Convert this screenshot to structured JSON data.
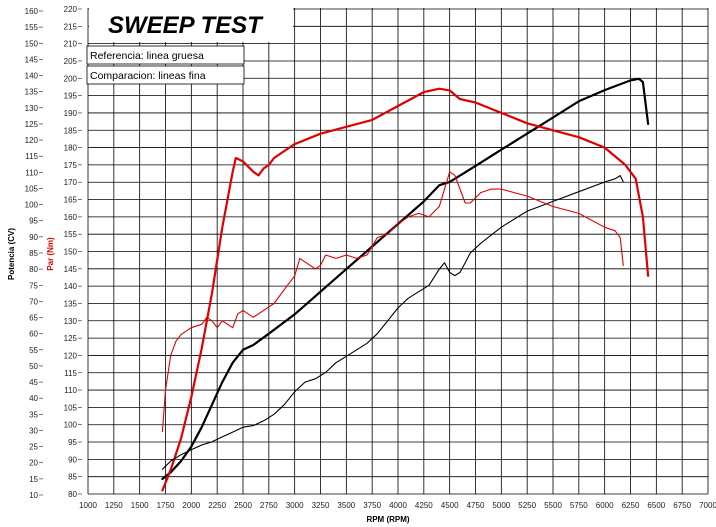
{
  "chart_data": {
    "type": "line",
    "title": "SWEEP TEST",
    "legend": [
      "Referencia: linea gruesa",
      "Comparacion: lineas fina"
    ],
    "xlabel": "RPM (RPM)",
    "ylabel_left": "Potencia (CV)",
    "ylabel_right": "Par (Nm)",
    "x_range": [
      1000,
      7000
    ],
    "x_ticks": [
      "1000",
      "1250",
      "1500",
      "1750",
      "2000",
      "2250",
      "2500",
      "2750",
      "3000",
      "3250",
      "3500",
      "3750",
      "4000",
      "4250",
      "4500",
      "4750",
      "5000",
      "5250",
      "5500",
      "5750",
      "6000",
      "6250",
      "6500",
      "6750",
      "7000"
    ],
    "left_range": [
      10,
      160
    ],
    "left_ticks": [
      "10",
      "15",
      "20",
      "25",
      "30",
      "35",
      "40",
      "45",
      "50",
      "55",
      "60",
      "65",
      "70",
      "75",
      "80",
      "85",
      "90",
      "95",
      "100",
      "105",
      "110",
      "115",
      "120",
      "125",
      "130",
      "135",
      "140",
      "145",
      "150",
      "155",
      "160"
    ],
    "right_range": [
      80,
      220
    ],
    "right_ticks": [
      "80",
      "85",
      "90",
      "95",
      "100",
      "105",
      "110",
      "115",
      "120",
      "125",
      "130",
      "135",
      "140",
      "145",
      "150",
      "155",
      "160",
      "165",
      "170",
      "175",
      "180",
      "185",
      "190",
      "195",
      "200",
      "205",
      "210",
      "215",
      "220"
    ],
    "grid": true,
    "series": [
      {
        "name": "Referencia: linea gruesa",
        "quantity": "Potencia",
        "axis": "left",
        "color": "#000000",
        "weight": "thick",
        "x": [
          1720,
          1800,
          1900,
          2000,
          2100,
          2200,
          2300,
          2400,
          2500,
          2600,
          2750,
          3000,
          3250,
          3500,
          3750,
          4000,
          4250,
          4400,
          4500,
          4600,
          4750,
          5000,
          5250,
          5500,
          5750,
          6000,
          6250,
          6330,
          6370,
          6420
        ],
        "y": [
          15,
          17,
          20.5,
          25,
          31,
          38,
          45,
          51,
          55,
          56.5,
          60,
          66,
          73,
          80,
          87,
          94,
          101,
          106,
          107,
          109,
          112,
          117,
          122,
          127,
          132,
          135.5,
          138.5,
          139,
          138,
          125
        ]
      },
      {
        "name": "Referencia: linea gruesa",
        "quantity": "Par",
        "axis": "right",
        "color": "#e00000",
        "weight": "thick",
        "x": [
          1720,
          1800,
          1900,
          2000,
          2100,
          2200,
          2300,
          2400,
          2430,
          2500,
          2600,
          2650,
          2700,
          2750,
          2800,
          3000,
          3250,
          3500,
          3750,
          4000,
          4250,
          4400,
          4500,
          4600,
          4750,
          5000,
          5250,
          5500,
          5750,
          6000,
          6200,
          6300,
          6370,
          6420
        ],
        "y": [
          81,
          87,
          96,
          108,
          122,
          138,
          157,
          173,
          177,
          176,
          173,
          172,
          174,
          175,
          177,
          181,
          184,
          186,
          188,
          192,
          196,
          197,
          196.5,
          194,
          193,
          190,
          187,
          185,
          183,
          180,
          175,
          171,
          160,
          143
        ]
      },
      {
        "name": "Comparacion: lineas fina",
        "quantity": "Potencia",
        "axis": "left",
        "color": "#000000",
        "weight": "thin",
        "x": [
          1720,
          1800,
          1900,
          2000,
          2100,
          2200,
          2300,
          2400,
          2500,
          2600,
          2700,
          2800,
          2900,
          3000,
          3100,
          3200,
          3300,
          3400,
          3500,
          3600,
          3700,
          3800,
          3900,
          4000,
          4100,
          4200,
          4300,
          4400,
          4450,
          4500,
          4550,
          4600,
          4650,
          4700,
          4800,
          5000,
          5250,
          5500,
          5750,
          6000,
          6100,
          6150,
          6180
        ],
        "y": [
          18,
          20.5,
          22.5,
          24,
          25.5,
          26.5,
          28,
          29.5,
          31,
          31.5,
          33,
          35,
          38,
          42,
          45,
          46,
          48,
          51,
          53,
          55,
          57,
          60,
          64,
          68,
          71,
          73,
          75,
          80,
          82,
          79,
          78,
          79,
          82,
          85,
          88,
          93,
          98,
          101,
          104,
          107,
          108,
          109,
          107
        ]
      },
      {
        "name": "Comparacion: lineas fina",
        "quantity": "Par",
        "axis": "right",
        "color": "#e00000",
        "weight": "thin",
        "x": [
          1720,
          1750,
          1800,
          1850,
          1900,
          2000,
          2100,
          2150,
          2200,
          2250,
          2300,
          2400,
          2450,
          2500,
          2600,
          2700,
          2800,
          2900,
          3000,
          3050,
          3100,
          3200,
          3250,
          3300,
          3400,
          3500,
          3600,
          3700,
          3800,
          3900,
          4000,
          4100,
          4200,
          4300,
          4400,
          4450,
          4500,
          4550,
          4600,
          4650,
          4700,
          4800,
          4900,
          5000,
          5250,
          5500,
          5750,
          6000,
          6100,
          6150,
          6180
        ],
        "y": [
          98,
          110,
          120,
          124,
          126,
          128,
          129,
          131,
          130,
          128,
          130,
          128,
          132,
          133,
          131,
          133,
          135,
          139,
          143,
          148,
          147,
          145,
          146,
          149,
          148,
          149,
          148,
          149,
          154,
          155,
          158,
          160,
          161,
          160,
          163,
          168,
          173,
          172,
          168,
          164,
          164,
          167,
          168,
          168,
          166,
          163,
          161,
          157,
          156,
          154,
          146
        ]
      }
    ]
  }
}
